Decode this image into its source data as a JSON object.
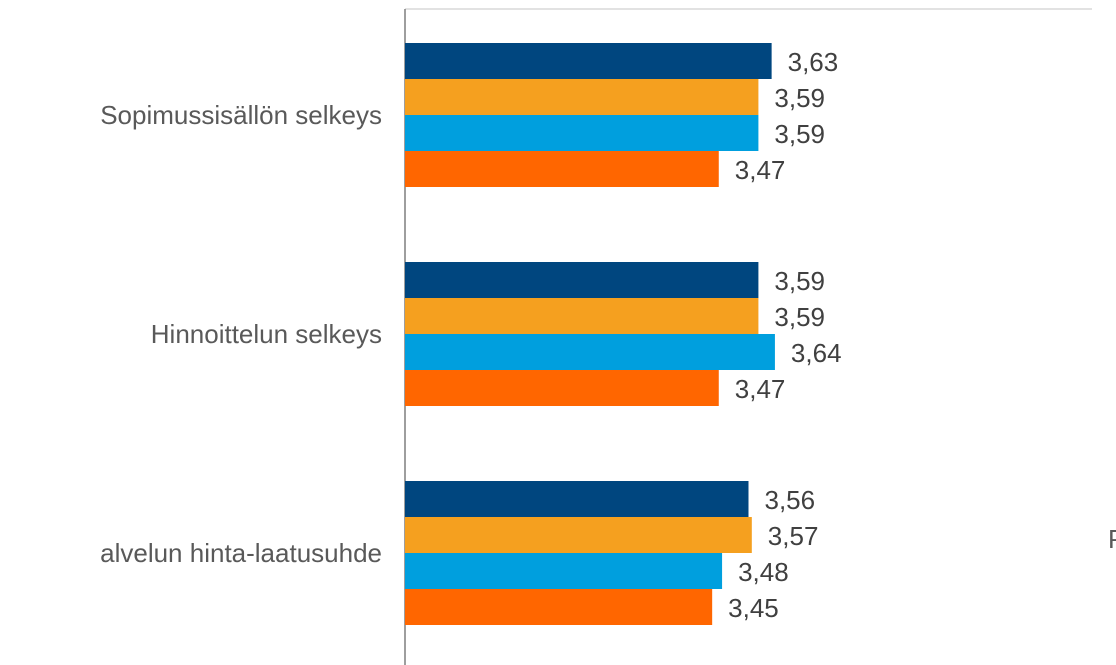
{
  "chart_data": {
    "type": "bar",
    "orientation": "horizontal",
    "categories": [
      "Sopimussisällön selkeys",
      "Hinnoittelun selkeys",
      "alvelun hinta-laatusuhde"
    ],
    "series": [
      {
        "color": "#00467f",
        "values": [
          3.63,
          3.59,
          3.56
        ]
      },
      {
        "color": "#f5a01f",
        "values": [
          3.59,
          3.59,
          3.57
        ]
      },
      {
        "color": "#009fde",
        "values": [
          3.59,
          3.64,
          3.48
        ]
      },
      {
        "color": "#ff6600",
        "values": [
          3.47,
          3.47,
          3.45
        ]
      }
    ],
    "value_labels": [
      [
        "3,63",
        "3,59",
        "3,59",
        "3,47"
      ],
      [
        "3,59",
        "3,59",
        "3,64",
        "3,47"
      ],
      [
        "3,56",
        "3,57",
        "3,48",
        "3,45"
      ]
    ],
    "xlim": [
      2.52,
      4.6
    ],
    "grid": false,
    "legend": "none"
  },
  "edge_text": "P"
}
